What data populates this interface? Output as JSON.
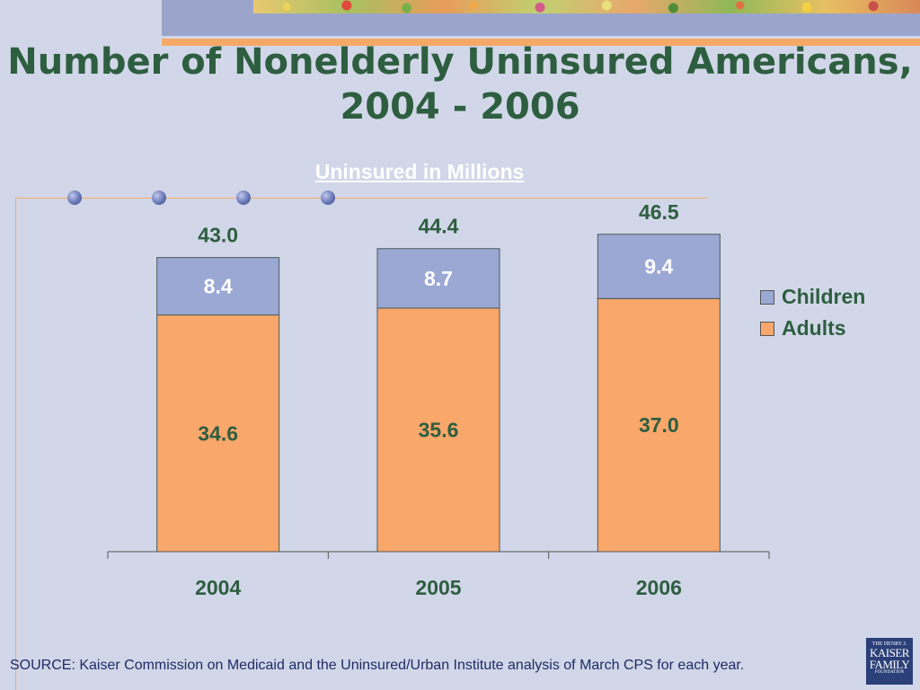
{
  "title_line1": "Number of Nonelderly Uninsured Americans,",
  "title_line2": "2004 - 2006",
  "colors": {
    "title": "#2e5e40",
    "children": "#9ba8d4",
    "adults": "#f9a76b",
    "background": "#d1d7e8",
    "label_on_children": "#ffffff",
    "label_on_adults": "#2e5e40"
  },
  "chart_data": {
    "type": "bar",
    "stacked": true,
    "title": "Uninsured in Millions",
    "categories": [
      "2004",
      "2005",
      "2006"
    ],
    "series": [
      {
        "name": "Adults",
        "values": [
          34.6,
          35.6,
          37.0
        ]
      },
      {
        "name": "Children",
        "values": [
          8.4,
          8.7,
          9.4
        ]
      }
    ],
    "totals": [
      "43.0",
      "44.4",
      "46.5"
    ],
    "value_labels": {
      "Adults": [
        "34.6",
        "35.6",
        "37.0"
      ],
      "Children": [
        "8.4",
        "8.7",
        "9.4"
      ]
    },
    "ylim": [
      0,
      46.5
    ],
    "legend": [
      "Children",
      "Adults"
    ],
    "legend_position": "right",
    "grid": false
  },
  "source": "SOURCE:  Kaiser Commission on Medicaid and the Uninsured/Urban Institute analysis of March CPS for each year.",
  "logo": {
    "line1": "THE HENRY J.",
    "line2": "KAISER",
    "line3": "FAMILY",
    "line4": "FOUNDATION"
  }
}
